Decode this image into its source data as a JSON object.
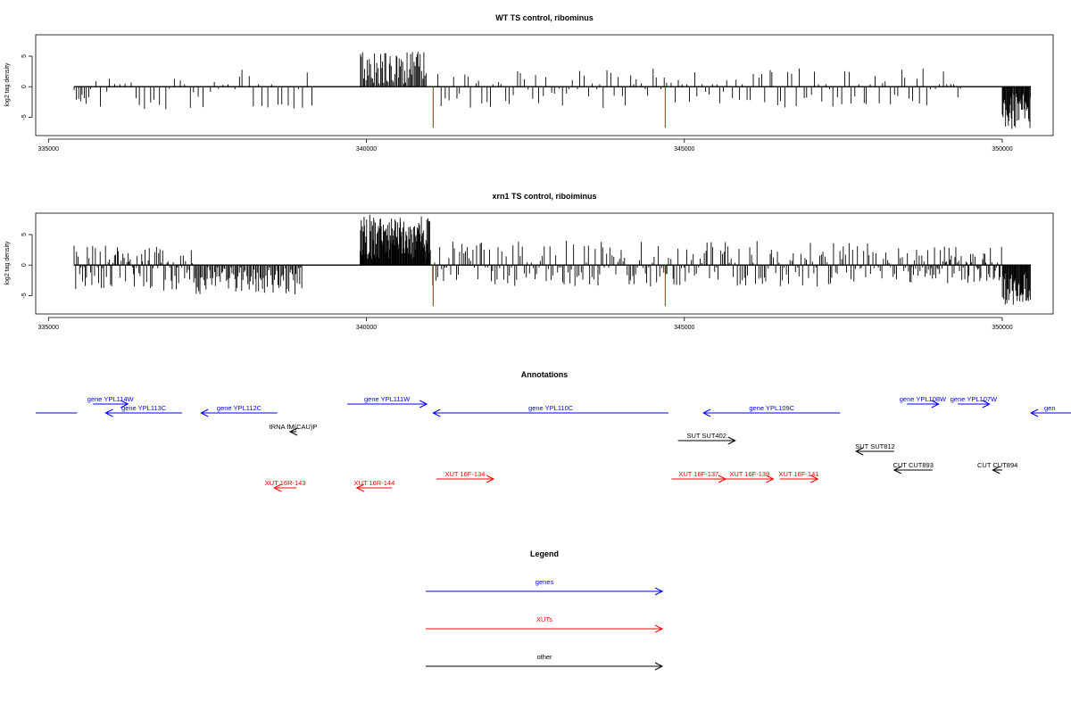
{
  "colors": {
    "genes": "#0000ff",
    "xuts": "#ff0000",
    "other": "#000000",
    "marker": "#ff0000"
  },
  "chart_data": [
    {
      "type": "bar",
      "title": "WT TS control, ribominus",
      "ylabel": "log2 tag density",
      "xlim": [
        334800,
        350800
      ],
      "ylim": [
        -8,
        8.5
      ],
      "xticks": [
        "335000",
        "340000",
        "345000",
        "350000"
      ],
      "yticks": [
        "-5",
        "0",
        "5"
      ],
      "marker_positions": [
        341050,
        344700
      ],
      "segments": [
        {
          "from": 335400,
          "to": 335650,
          "bars": 8,
          "min": -3,
          "max": 0
        },
        {
          "from": 335650,
          "to": 339200,
          "bars": 46,
          "min": -4,
          "max": 2.8
        },
        {
          "from": 339900,
          "to": 340950,
          "bars": 60,
          "min": 0.5,
          "max": 5.8
        },
        {
          "from": 341100,
          "to": 349400,
          "bars": 140,
          "min": -3.5,
          "max": 3
        },
        {
          "from": 350000,
          "to": 350450,
          "bars": 45,
          "min": -7,
          "max": -1
        }
      ]
    },
    {
      "type": "bar",
      "title": "xrn1 TS control, riboiminus",
      "ylabel": "log2 tag density",
      "xlim": [
        334800,
        350800
      ],
      "ylim": [
        -8,
        8.5
      ],
      "xticks": [
        "335000",
        "340000",
        "345000",
        "350000"
      ],
      "yticks": [
        "-5",
        "0",
        "5"
      ],
      "marker_positions": [
        341050,
        344700
      ],
      "segments": [
        {
          "from": 335400,
          "to": 337300,
          "bars": 90,
          "min": -4.2,
          "max": 3.3
        },
        {
          "from": 337300,
          "to": 339000,
          "bars": 90,
          "min": -4.8,
          "max": 0
        },
        {
          "from": 339900,
          "to": 341000,
          "bars": 130,
          "min": 1,
          "max": 8.3
        },
        {
          "from": 341000,
          "to": 348500,
          "bars": 260,
          "min": -3.5,
          "max": 4
        },
        {
          "from": 348500,
          "to": 350000,
          "bars": 80,
          "min": -3,
          "max": 3
        },
        {
          "from": 350000,
          "to": 350450,
          "bars": 45,
          "min": -6.5,
          "max": -1
        }
      ]
    }
  ],
  "annotations": {
    "title": "Annotations",
    "features": [
      {
        "label": "",
        "type": "gene",
        "strand": "+",
        "start": 334800,
        "end": 335450,
        "row": 2
      },
      {
        "label": "gene YPL114W",
        "type": "gene",
        "strand": "+",
        "start": 335700,
        "end": 336250,
        "row": 1
      },
      {
        "label": "gene YPL113C",
        "type": "gene",
        "strand": "-",
        "start": 335900,
        "end": 337100,
        "row": 2
      },
      {
        "label": "gene YPL112C",
        "type": "gene",
        "strand": "-",
        "start": 337400,
        "end": 338600,
        "row": 2
      },
      {
        "label": "gene YPL111W",
        "type": "gene",
        "strand": "+",
        "start": 339700,
        "end": 340950,
        "row": 1
      },
      {
        "label": "gene YPL110C",
        "type": "gene",
        "strand": "-",
        "start": 341050,
        "end": 344750,
        "row": 2
      },
      {
        "label": "gene YPL109C",
        "type": "gene",
        "strand": "-",
        "start": 345300,
        "end": 347450,
        "row": 2
      },
      {
        "label": "gene YPL108W",
        "type": "gene",
        "strand": "+",
        "start": 348500,
        "end": 349000,
        "row": 1
      },
      {
        "label": "gene YPL107W",
        "type": "gene",
        "strand": "+",
        "start": 349300,
        "end": 349800,
        "row": 1
      },
      {
        "label": "gen",
        "type": "gene",
        "strand": "-",
        "start": 350450,
        "end": 351500,
        "row": 2
      },
      {
        "label": "tRNA fM(CAU)P",
        "type": "other",
        "strand": "-",
        "start": 338800,
        "end": 338900,
        "row": 3
      },
      {
        "label": "SUT SUT402",
        "type": "other",
        "strand": "+",
        "start": 344900,
        "end": 345800,
        "row": 4
      },
      {
        "label": "SUT SUT812",
        "type": "other",
        "strand": "-",
        "start": 347700,
        "end": 348300,
        "row": 5
      },
      {
        "label": "CUT CUT893",
        "type": "other",
        "strand": "-",
        "start": 348300,
        "end": 348900,
        "row": 6
      },
      {
        "label": "CUT CUT894",
        "type": "other",
        "strand": "-",
        "start": 349850,
        "end": 350000,
        "row": 6
      },
      {
        "label": "XUT 16F-134",
        "type": "xut",
        "strand": "+",
        "start": 341100,
        "end": 342000,
        "row": 7
      },
      {
        "label": "XUT 16F-137",
        "type": "xut",
        "strand": "+",
        "start": 344800,
        "end": 345650,
        "row": 7
      },
      {
        "label": "XUT 16F-139",
        "type": "xut",
        "strand": "+",
        "start": 345650,
        "end": 346400,
        "row": 7
      },
      {
        "label": "XUT 16F-141",
        "type": "xut",
        "strand": "+",
        "start": 346500,
        "end": 347100,
        "row": 7
      },
      {
        "label": "XUT 16R-143",
        "type": "xut",
        "strand": "-",
        "start": 338550,
        "end": 338900,
        "row": 8
      },
      {
        "label": "XUT 16R-144",
        "type": "xut",
        "strand": "-",
        "start": 339850,
        "end": 340400,
        "row": 8
      }
    ]
  },
  "legend": {
    "title": "Legend",
    "items": [
      {
        "label": "genes",
        "type": "gene"
      },
      {
        "label": "XUTs",
        "type": "xut"
      },
      {
        "label": "other",
        "type": "other"
      }
    ]
  }
}
